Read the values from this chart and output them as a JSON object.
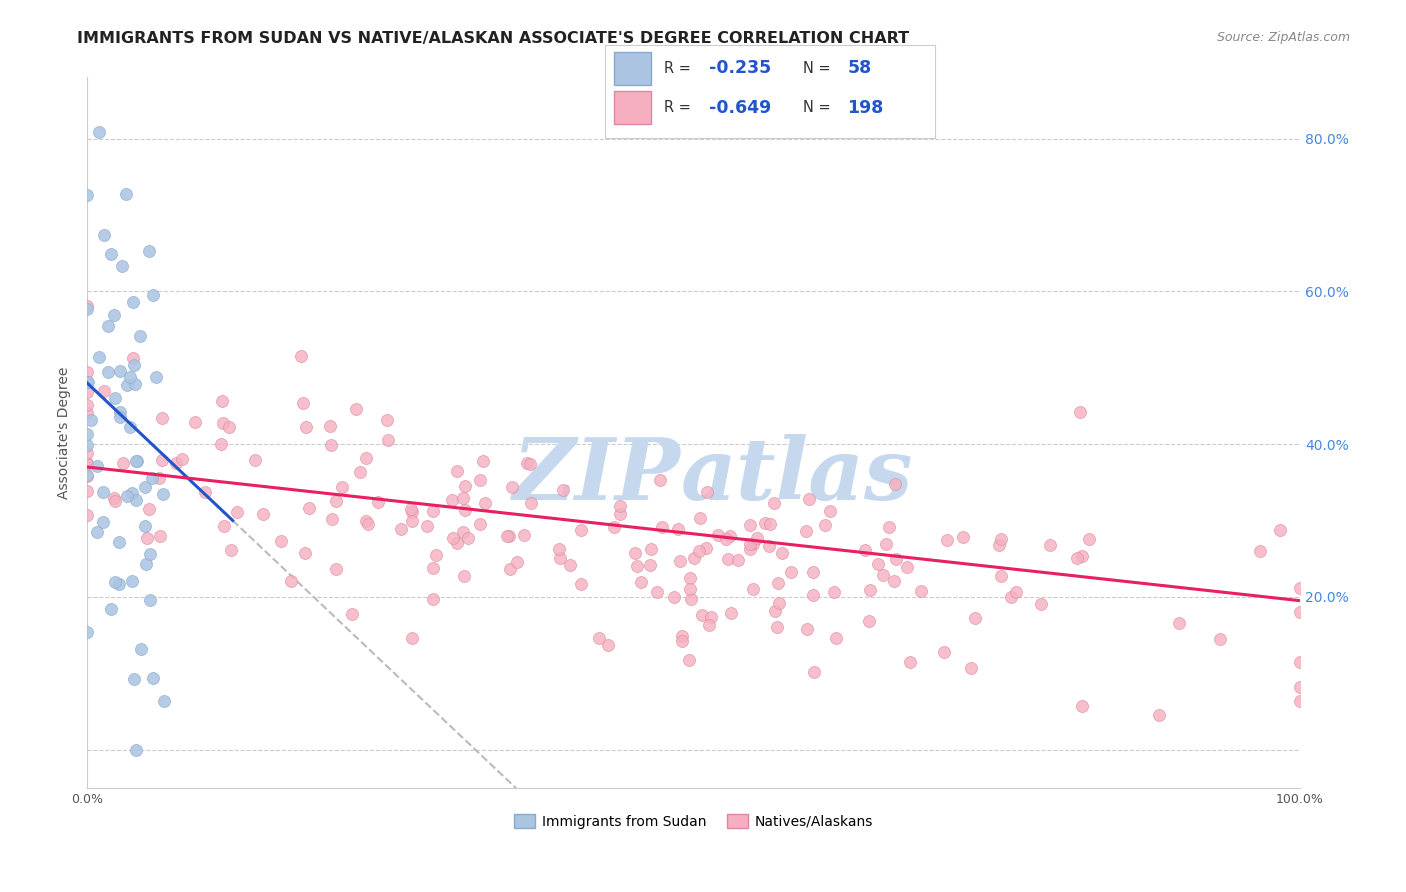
{
  "title": "IMMIGRANTS FROM SUDAN VS NATIVE/ALASKAN ASSOCIATE'S DEGREE CORRELATION CHART",
  "source": "Source: ZipAtlas.com",
  "ylabel": "Associate's Degree",
  "y_ticks": [
    0.0,
    0.2,
    0.4,
    0.6,
    0.8
  ],
  "y_tick_right_labels": [
    "",
    "20.0%",
    "40.0%",
    "60.0%",
    "80.0%"
  ],
  "xlim": [
    0.0,
    1.0
  ],
  "ylim": [
    -0.05,
    0.88
  ],
  "sudan_R": -0.235,
  "sudan_N": 58,
  "native_R": -0.649,
  "native_N": 198,
  "sudan_color": "#aac4e2",
  "native_color": "#f5afc0",
  "sudan_line_color": "#2255cc",
  "native_line_color": "#e82060",
  "sudan_edge_color": "#88aacc",
  "native_edge_color": "#dd88a0",
  "legend_text_color": "#2255cc",
  "watermark_color": "#c5d8ee",
  "background_color": "#ffffff",
  "grid_color": "#cccccc",
  "title_fontsize": 11.5,
  "source_fontsize": 9,
  "label_fontsize": 10,
  "right_label_color": "#4488dd",
  "marker_size": 75
}
